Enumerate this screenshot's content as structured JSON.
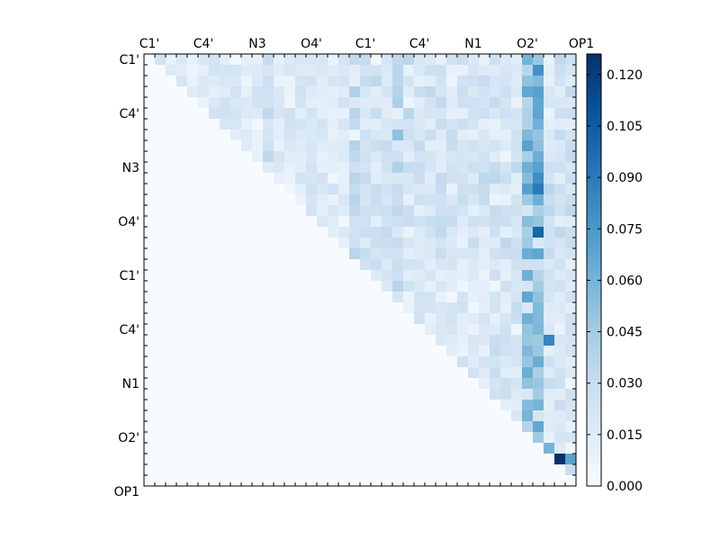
{
  "chart_data": {
    "type": "heatmap",
    "title": "",
    "xlabel": "",
    "ylabel": "",
    "grid": false,
    "colormap": {
      "name": "Blues",
      "low_color": "#f7fbff",
      "high_color": "#08306b"
    },
    "top_tick_labels": [
      "C1'",
      "C4'",
      "N3",
      "O4'",
      "C1'",
      "C4'",
      "N1",
      "O2'",
      "OP1"
    ],
    "left_tick_labels": [
      "C1'",
      "C4'",
      "N3",
      "O4'",
      "C1'",
      "C4'",
      "N1",
      "O2'",
      "OP1"
    ],
    "colorbar": {
      "vmin": 0.0,
      "vmax": 0.126,
      "ticks": [
        0.0,
        0.015,
        0.03,
        0.045,
        0.06,
        0.075,
        0.09,
        0.105,
        0.12
      ],
      "tick_labels": [
        "0.000",
        "0.015",
        "0.030",
        "0.045",
        "0.060",
        "0.075",
        "0.090",
        "0.105",
        "0.120"
      ]
    },
    "matrix_size": 40,
    "upper_triangle_summary": "Lower triangle and diagonal are 0; upper triangle values estimated by region (values ~0.01–0.06, peaks ~0.08–0.126 near OP1 columns).",
    "highlights": [
      {
        "row": 37,
        "col": 38,
        "value": 0.126
      },
      {
        "row": 37,
        "col": 39,
        "value": 0.07
      },
      {
        "row": 36,
        "col": 37,
        "value": 0.06
      },
      {
        "row": 16,
        "col": 36,
        "value": 0.1
      },
      {
        "row": 12,
        "col": 36,
        "value": 0.09
      },
      {
        "row": 26,
        "col": 37,
        "value": 0.085
      },
      {
        "row": 3,
        "col": 36,
        "value": 0.07
      },
      {
        "row": 11,
        "col": 36,
        "value": 0.08
      }
    ]
  }
}
